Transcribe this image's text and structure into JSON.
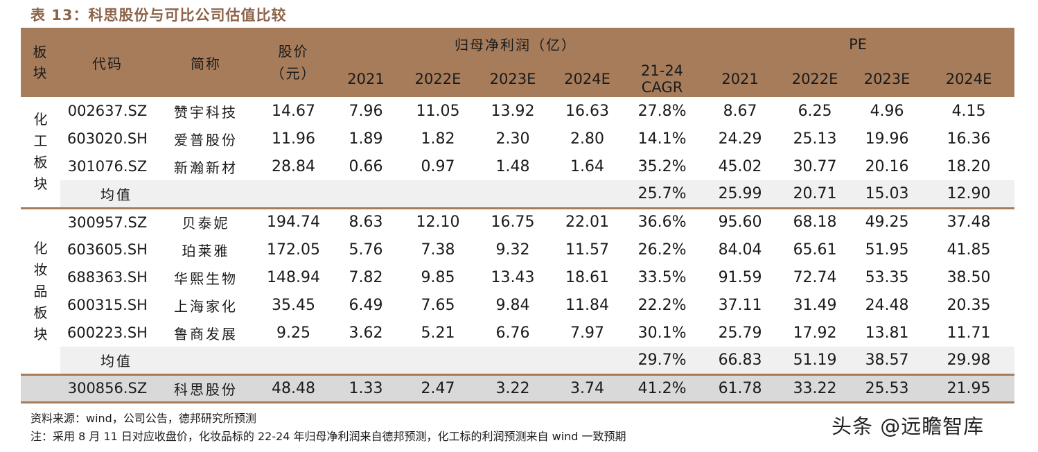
{
  "title": "表 13：科思股份与可比公司估值比较",
  "header": {
    "sector": "板块",
    "code": "代码",
    "name": "简称",
    "price": "股价（元）",
    "net_profit_group": "归母净利润（亿）",
    "pe_group": "PE",
    "years": [
      "2021",
      "2022E",
      "2023E",
      "2024E"
    ],
    "cagr": "21-24 CAGR"
  },
  "groups": [
    {
      "sector": "化工板块",
      "rows": [
        {
          "code": "002637.SZ",
          "name": "赞宇科技",
          "price": "14.67",
          "np": [
            "7.96",
            "11.05",
            "13.92",
            "16.63"
          ],
          "cagr": "27.8%",
          "pe": [
            "8.67",
            "6.25",
            "4.96",
            "4.15"
          ]
        },
        {
          "code": "603020.SH",
          "name": "爱普股份",
          "price": "11.96",
          "np": [
            "1.89",
            "1.82",
            "2.30",
            "2.80"
          ],
          "cagr": "14.1%",
          "pe": [
            "24.29",
            "25.13",
            "19.96",
            "16.36"
          ]
        },
        {
          "code": "301076.SZ",
          "name": "新瀚新材",
          "price": "28.84",
          "np": [
            "0.66",
            "0.97",
            "1.48",
            "1.64"
          ],
          "cagr": "35.2%",
          "pe": [
            "45.02",
            "30.77",
            "20.16",
            "18.20"
          ]
        }
      ],
      "avg": {
        "label": "均值",
        "cagr": "25.7%",
        "pe": [
          "25.99",
          "20.71",
          "15.03",
          "12.90"
        ]
      }
    },
    {
      "sector": "化妆品板块",
      "rows": [
        {
          "code": "300957.SZ",
          "name": "贝泰妮",
          "price": "194.74",
          "np": [
            "8.63",
            "12.10",
            "16.75",
            "22.01"
          ],
          "cagr": "36.6%",
          "pe": [
            "95.60",
            "68.18",
            "49.25",
            "37.48"
          ]
        },
        {
          "code": "603605.SH",
          "name": "珀莱雅",
          "price": "172.05",
          "np": [
            "5.76",
            "7.38",
            "9.32",
            "11.57"
          ],
          "cagr": "26.2%",
          "pe": [
            "84.04",
            "65.61",
            "51.95",
            "41.85"
          ]
        },
        {
          "code": "688363.SH",
          "name": "华熙生物",
          "price": "148.94",
          "np": [
            "7.82",
            "9.85",
            "13.43",
            "18.61"
          ],
          "cagr": "33.5%",
          "pe": [
            "91.59",
            "72.74",
            "53.35",
            "38.50"
          ]
        },
        {
          "code": "600315.SH",
          "name": "上海家化",
          "price": "35.45",
          "np": [
            "6.49",
            "7.65",
            "9.84",
            "11.84"
          ],
          "cagr": "22.2%",
          "pe": [
            "37.11",
            "31.49",
            "24.48",
            "20.35"
          ]
        },
        {
          "code": "600223.SH",
          "name": "鲁商发展",
          "price": "9.25",
          "np": [
            "3.62",
            "5.21",
            "6.76",
            "7.97"
          ],
          "cagr": "30.1%",
          "pe": [
            "25.79",
            "17.92",
            "13.81",
            "11.71"
          ]
        }
      ],
      "avg": {
        "label": "均值",
        "cagr": "29.7%",
        "pe": [
          "66.83",
          "51.19",
          "38.57",
          "29.98"
        ]
      }
    }
  ],
  "focus": {
    "code": "300856.SZ",
    "name": "科思股份",
    "price": "48.48",
    "np": [
      "1.33",
      "2.47",
      "3.22",
      "3.74"
    ],
    "cagr": "41.2%",
    "pe": [
      "61.78",
      "33.22",
      "25.53",
      "21.95"
    ]
  },
  "notes": {
    "source": "资料来源：wind，公司公告，德邦研究所预测",
    "note": "注：采用 8 月 11 日对应收盘价，化妆品标的 22-24 年归母净利润来自德邦预测，化工标的利润预测来自 wind 一致预期"
  },
  "watermark": "头条 @远瞻智库",
  "colors": {
    "header_bg": "#a67c5b",
    "title": "#8c6347",
    "avg_bg": "#f0f0f0",
    "focus_bg": "#d9d9d9"
  }
}
